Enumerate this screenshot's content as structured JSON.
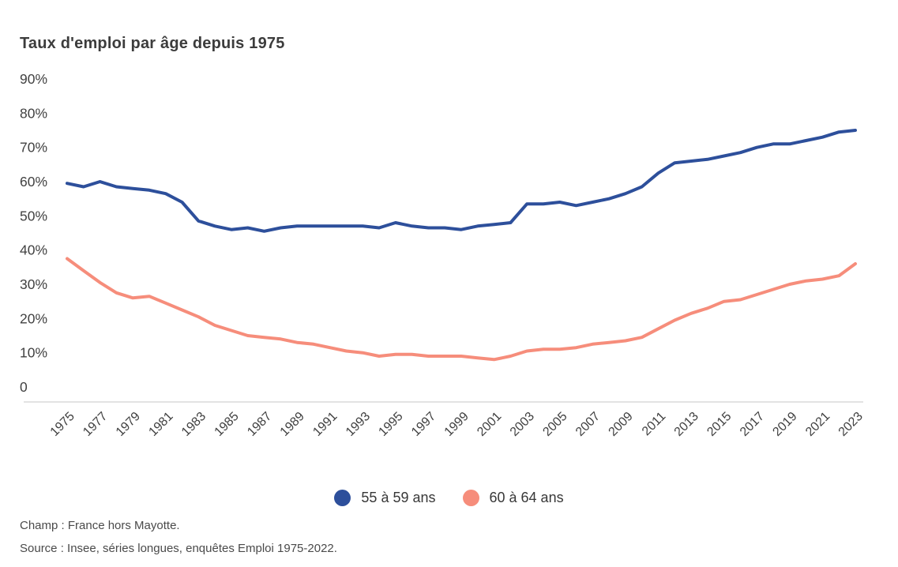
{
  "chart_data": {
    "type": "line",
    "title": "Taux d'emploi par âge depuis 1975",
    "x": [
      1975,
      1976,
      1977,
      1978,
      1979,
      1980,
      1981,
      1982,
      1983,
      1984,
      1985,
      1986,
      1987,
      1988,
      1989,
      1990,
      1991,
      1992,
      1993,
      1994,
      1995,
      1996,
      1997,
      1998,
      1999,
      2000,
      2001,
      2002,
      2003,
      2004,
      2005,
      2006,
      2007,
      2008,
      2009,
      2010,
      2011,
      2012,
      2013,
      2014,
      2015,
      2016,
      2017,
      2018,
      2019,
      2020,
      2021,
      2022,
      2023
    ],
    "x_tick_labels": [
      "1975",
      "1977",
      "1979",
      "1981",
      "1983",
      "1985",
      "1987",
      "1989",
      "1991",
      "1993",
      "1995",
      "1997",
      "1999",
      "2001",
      "2003",
      "2005",
      "2007",
      "2009",
      "2011",
      "2013",
      "2015",
      "2017",
      "2019",
      "2021",
      "2023"
    ],
    "y_ticks": [
      {
        "value": 90,
        "label": "90%"
      },
      {
        "value": 80,
        "label": "80%"
      },
      {
        "value": 70,
        "label": "70%"
      },
      {
        "value": 60,
        "label": "60%"
      },
      {
        "value": 50,
        "label": "50%"
      },
      {
        "value": 40,
        "label": "40%"
      },
      {
        "value": 30,
        "label": "30%"
      },
      {
        "value": 20,
        "label": "20%"
      },
      {
        "value": 10,
        "label": "10%"
      },
      {
        "value": 0,
        "label": "0"
      }
    ],
    "ylim": [
      0,
      90
    ],
    "grid": "off",
    "legend_position": "bottom-center",
    "series": [
      {
        "name": "55 à 59 ans",
        "color": "#2d4f9b",
        "values": [
          59.5,
          58.5,
          60,
          58.5,
          58,
          57.5,
          56.5,
          54,
          48.5,
          47,
          46,
          46.5,
          45.5,
          46.5,
          47,
          47,
          47,
          47,
          47,
          46.5,
          48,
          47,
          46.5,
          46.5,
          46,
          47,
          47.5,
          48,
          53.5,
          53.5,
          54,
          53,
          54,
          55,
          56.5,
          58.5,
          62.5,
          65.5,
          66,
          66.5,
          67.5,
          68.5,
          70,
          71,
          71,
          72,
          73,
          74.5,
          75
        ]
      },
      {
        "name": "60 à 64 ans",
        "color": "#f68d7b",
        "values": [
          37.5,
          34,
          30.5,
          27.5,
          26,
          26.5,
          24.5,
          22.5,
          20.5,
          18,
          16.5,
          15,
          14.5,
          14,
          13,
          12.5,
          11.5,
          10.5,
          10,
          9,
          9.5,
          9.5,
          9,
          9,
          9,
          8.5,
          8,
          9,
          10.5,
          11,
          11,
          11.5,
          12.5,
          13,
          13.5,
          14.5,
          17,
          19.5,
          21.5,
          23,
          25,
          25.5,
          27,
          28.5,
          30,
          31,
          31.5,
          32.5,
          36
        ]
      }
    ],
    "axis_color": "#414141",
    "baseline_color": "#dadada"
  },
  "footer": {
    "champ": "Champ : France hors Mayotte.",
    "source": "Source : Insee, séries longues, enquêtes Emploi 1975-2022."
  }
}
